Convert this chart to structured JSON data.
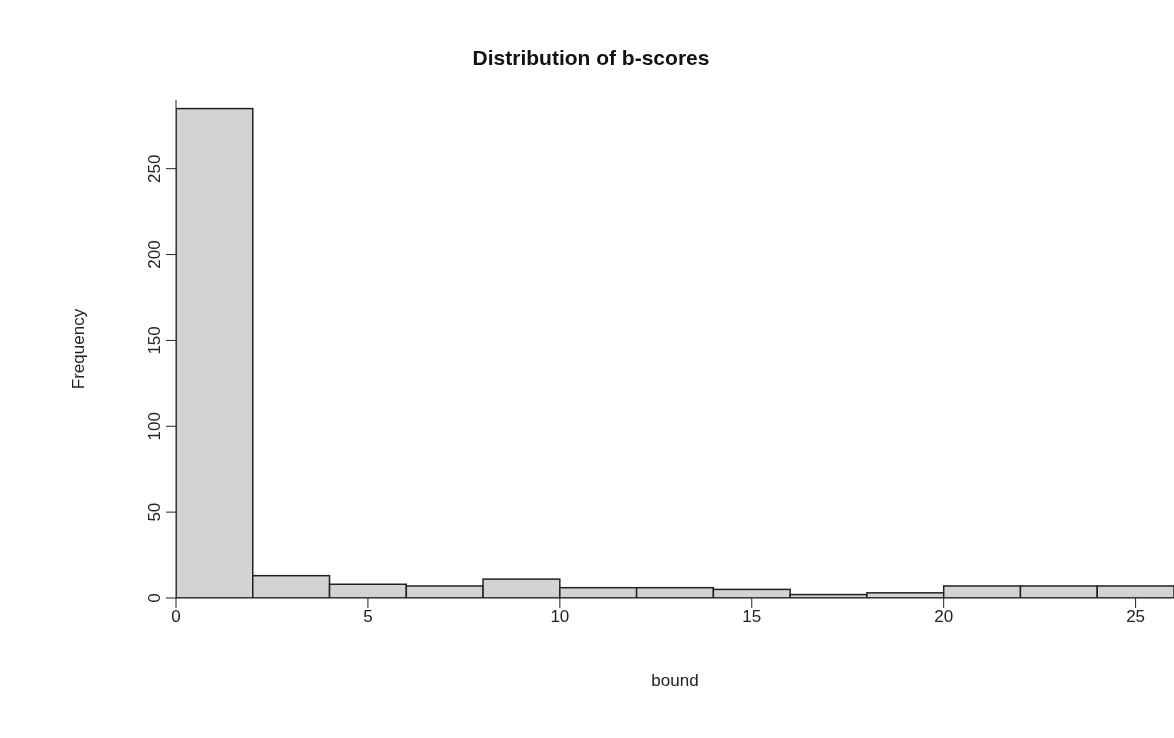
{
  "chart_data": {
    "type": "histogram",
    "title": "Distribution of b-scores",
    "xlabel": "bound",
    "ylabel": "Frequency",
    "bins": [
      0,
      2,
      4,
      6,
      8,
      10,
      12,
      14,
      16,
      18,
      20,
      22,
      24,
      26
    ],
    "values": [
      285,
      13,
      8,
      7,
      11,
      6,
      6,
      5,
      2,
      3,
      7,
      7,
      7
    ],
    "color": "#d3d3d3",
    "xlim": [
      0,
      26
    ],
    "xticks": [
      0,
      5,
      10,
      15,
      20,
      25
    ],
    "ylim": [
      0,
      290
    ],
    "yticks": [
      0,
      50,
      100,
      150,
      200,
      250
    ],
    "grid": false,
    "legend": false
  }
}
